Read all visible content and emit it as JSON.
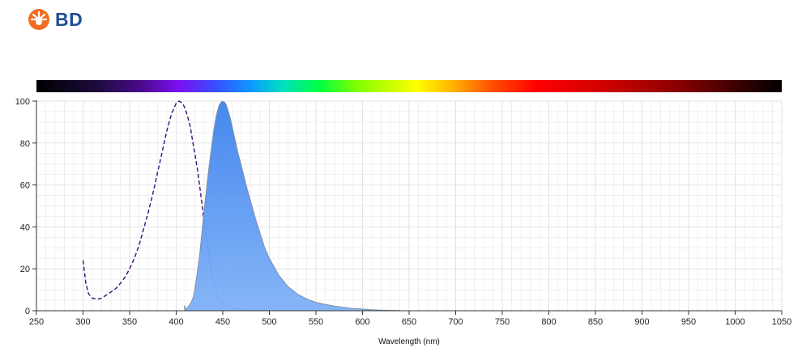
{
  "brand": {
    "logo_text": "BD",
    "logo_color": "#1f4f95",
    "mark_color": "#f26c21"
  },
  "chart_data": {
    "type": "area",
    "xlabel": "Wavelength (nm)",
    "ylabel": "",
    "xlim": [
      250,
      1050
    ],
    "ylim": [
      0,
      100
    ],
    "x_ticks": [
      250,
      300,
      350,
      400,
      450,
      500,
      550,
      600,
      650,
      700,
      750,
      800,
      850,
      900,
      950,
      1000,
      1050
    ],
    "y_ticks": [
      0,
      20,
      40,
      60,
      80,
      100
    ],
    "grid": true,
    "spectrum_bar": true,
    "series": [
      {
        "style": "dashed-line",
        "color": "#3d0a7a",
        "x": [
          300,
          303,
          306,
          310,
          315,
          320,
          325,
          330,
          335,
          340,
          345,
          350,
          355,
          360,
          365,
          370,
          375,
          380,
          385,
          390,
          395,
          400,
          403,
          405,
          408,
          410,
          412,
          415,
          418,
          420,
          423,
          425,
          428,
          430,
          433,
          435,
          438,
          440,
          443,
          445,
          450,
          455,
          460,
          465,
          470,
          480,
          490,
          500
        ],
        "y": [
          24,
          13,
          8,
          6,
          5.5,
          6,
          7.5,
          9,
          10.5,
          13,
          16,
          20,
          25,
          31,
          39,
          47,
          56,
          66,
          76,
          86,
          94,
          99,
          100,
          99.5,
          98,
          96,
          93,
          88,
          80,
          75,
          67,
          60,
          50,
          42,
          33,
          26,
          19,
          14,
          9.5,
          7,
          3.5,
          2,
          1.2,
          0.8,
          0.5,
          0.3,
          0.2,
          0.1
        ]
      },
      {
        "style": "filled-area",
        "color": "#5b95ef",
        "x": [
          409,
          410,
          411,
          412,
          414,
          416,
          418,
          420,
          425,
          430,
          435,
          440,
          443,
          446,
          449,
          452,
          454,
          456,
          458,
          460,
          463,
          466,
          470,
          475,
          480,
          485,
          490,
          495,
          500,
          510,
          520,
          530,
          540,
          550,
          560,
          570,
          580,
          590,
          600,
          610,
          620,
          630,
          640
        ],
        "y": [
          2.5,
          1,
          0.5,
          1.5,
          2.5,
          4,
          6,
          10,
          26,
          48,
          68,
          85,
          93,
          98,
          100,
          99.5,
          98,
          95,
          92,
          88,
          82,
          76,
          69,
          60,
          52,
          44,
          37,
          30,
          25,
          17,
          11.5,
          8,
          5.6,
          4,
          3,
          2.2,
          1.6,
          1.1,
          0.8,
          0.5,
          0.3,
          0.2,
          0.1
        ]
      }
    ]
  }
}
